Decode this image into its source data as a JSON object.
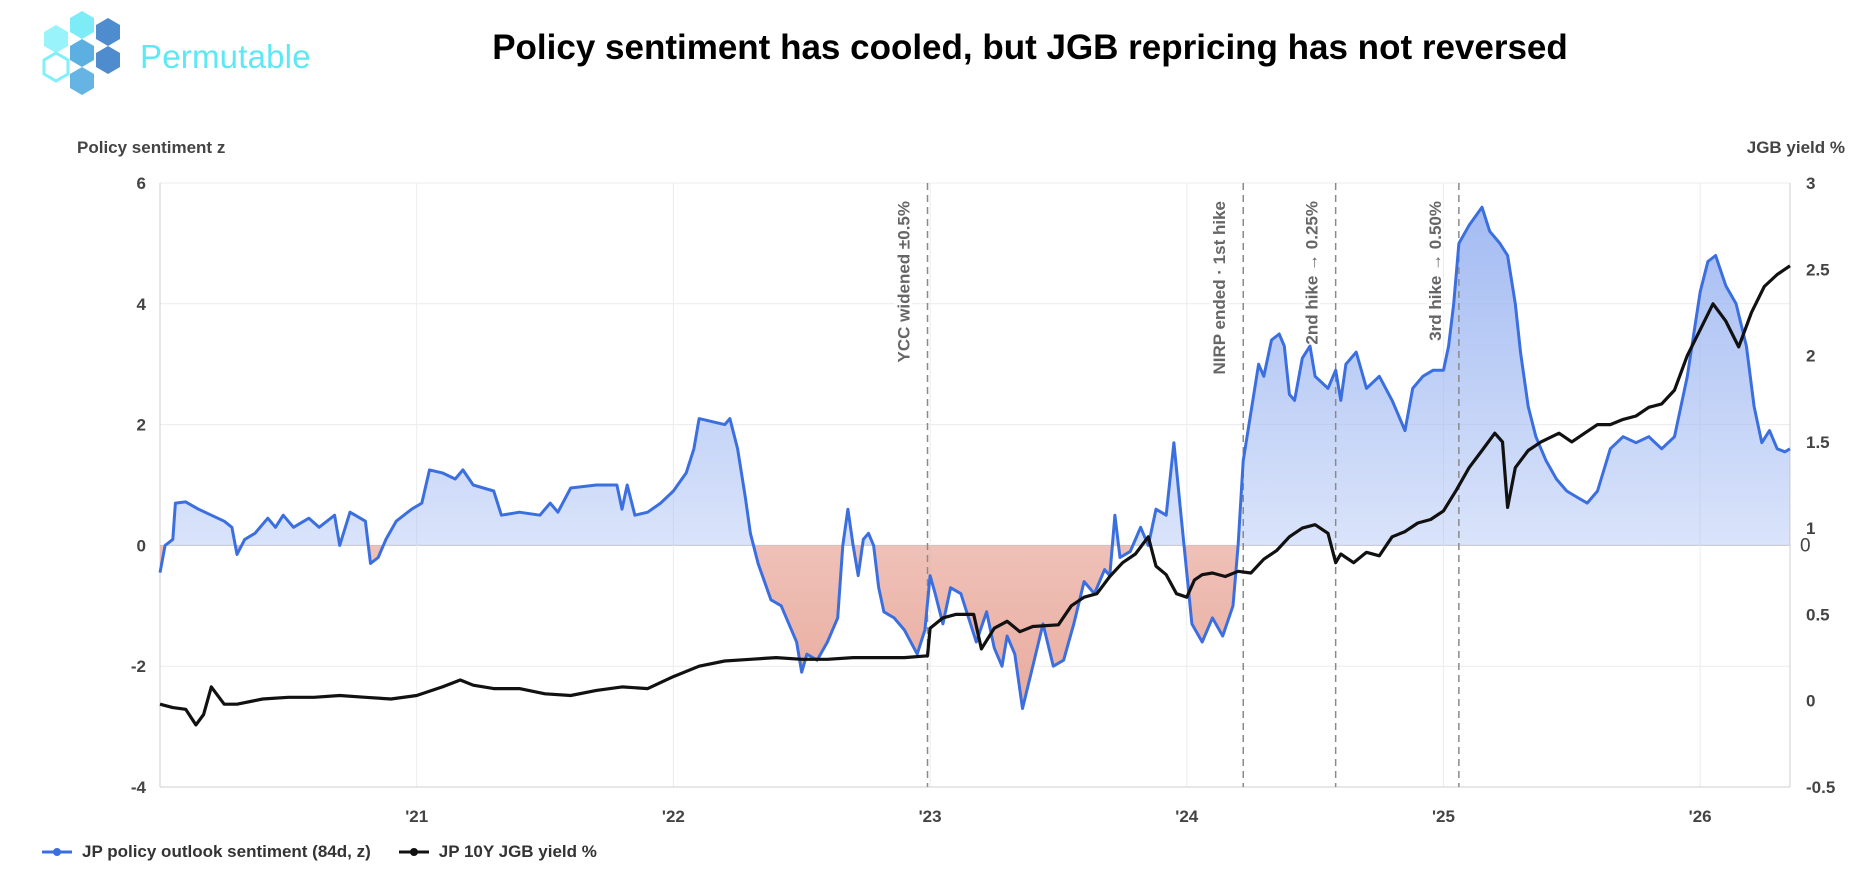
{
  "header": {
    "brand": "Permutable",
    "title": "Policy sentiment has cooled, but JGB repricing has not reversed"
  },
  "colors": {
    "sentiment": "#3b6fe0",
    "yield": "#111111",
    "positive_fill": "#9fb8f2",
    "negative_fill": "#e8a79a",
    "logo_hex": "#5ee7f5",
    "logo_hex_dark": "#3b7fc8"
  },
  "chart_data": {
    "type": "line",
    "title": "Policy sentiment has cooled, but JGB repricing has not reversed",
    "y_left_label": "Policy sentiment z",
    "y_right_label": "JGB yield %",
    "x_range": [
      2020.0,
      2026.35
    ],
    "ylim_left": [
      -4,
      6
    ],
    "ylim_right": [
      -0.5,
      3
    ],
    "x_ticks": [
      {
        "x": 2021,
        "label": "'21"
      },
      {
        "x": 2022,
        "label": "'22"
      },
      {
        "x": 2023,
        "label": "'23"
      },
      {
        "x": 2024,
        "label": "'24"
      },
      {
        "x": 2025,
        "label": "'25"
      },
      {
        "x": 2026,
        "label": "'26"
      }
    ],
    "y_left_ticks": [
      -4,
      -2,
      0,
      2,
      4,
      6
    ],
    "y_right_ticks": [
      -0.5,
      0,
      0.5,
      1,
      1.5,
      2,
      2.5,
      3
    ],
    "zero_label": "0",
    "grid": true,
    "legend_position": "bottom-left",
    "events": [
      {
        "x": 2022.99,
        "label": "YCC widened ±0.5%"
      },
      {
        "x": 2024.22,
        "label": "NIRP ended · 1st hike"
      },
      {
        "x": 2024.58,
        "label": "2nd hike → 0.25%"
      },
      {
        "x": 2025.06,
        "label": "3rd hike → 0.50%"
      }
    ],
    "series": [
      {
        "name": "JP policy outlook sentiment (84d, z)",
        "axis": "left",
        "points": [
          [
            2020.0,
            -0.45
          ],
          [
            2020.02,
            0.0
          ],
          [
            2020.05,
            0.1
          ],
          [
            2020.06,
            0.7
          ],
          [
            2020.1,
            0.72
          ],
          [
            2020.15,
            0.6
          ],
          [
            2020.2,
            0.5
          ],
          [
            2020.25,
            0.4
          ],
          [
            2020.28,
            0.3
          ],
          [
            2020.3,
            -0.15
          ],
          [
            2020.33,
            0.1
          ],
          [
            2020.37,
            0.2
          ],
          [
            2020.42,
            0.45
          ],
          [
            2020.45,
            0.3
          ],
          [
            2020.48,
            0.5
          ],
          [
            2020.52,
            0.3
          ],
          [
            2020.58,
            0.45
          ],
          [
            2020.62,
            0.3
          ],
          [
            2020.68,
            0.5
          ],
          [
            2020.7,
            0.0
          ],
          [
            2020.74,
            0.55
          ],
          [
            2020.8,
            0.4
          ],
          [
            2020.82,
            -0.3
          ],
          [
            2020.85,
            -0.2
          ],
          [
            2020.88,
            0.1
          ],
          [
            2020.92,
            0.4
          ],
          [
            2020.98,
            0.6
          ],
          [
            2021.02,
            0.7
          ],
          [
            2021.05,
            1.25
          ],
          [
            2021.1,
            1.2
          ],
          [
            2021.15,
            1.1
          ],
          [
            2021.18,
            1.25
          ],
          [
            2021.22,
            1.0
          ],
          [
            2021.3,
            0.9
          ],
          [
            2021.33,
            0.5
          ],
          [
            2021.4,
            0.55
          ],
          [
            2021.48,
            0.5
          ],
          [
            2021.52,
            0.7
          ],
          [
            2021.55,
            0.55
          ],
          [
            2021.6,
            0.95
          ],
          [
            2021.7,
            1.0
          ],
          [
            2021.78,
            1.0
          ],
          [
            2021.8,
            0.6
          ],
          [
            2021.82,
            1.0
          ],
          [
            2021.85,
            0.5
          ],
          [
            2021.9,
            0.55
          ],
          [
            2021.95,
            0.7
          ],
          [
            2022.0,
            0.9
          ],
          [
            2022.05,
            1.2
          ],
          [
            2022.08,
            1.6
          ],
          [
            2022.1,
            2.1
          ],
          [
            2022.15,
            2.05
          ],
          [
            2022.2,
            2.0
          ],
          [
            2022.22,
            2.1
          ],
          [
            2022.25,
            1.6
          ],
          [
            2022.28,
            0.8
          ],
          [
            2022.3,
            0.2
          ],
          [
            2022.33,
            -0.3
          ],
          [
            2022.38,
            -0.9
          ],
          [
            2022.42,
            -1.0
          ],
          [
            2022.45,
            -1.3
          ],
          [
            2022.48,
            -1.6
          ],
          [
            2022.5,
            -2.1
          ],
          [
            2022.52,
            -1.8
          ],
          [
            2022.56,
            -1.9
          ],
          [
            2022.6,
            -1.6
          ],
          [
            2022.64,
            -1.2
          ],
          [
            2022.66,
            0.0
          ],
          [
            2022.68,
            0.6
          ],
          [
            2022.7,
            0.0
          ],
          [
            2022.72,
            -0.5
          ],
          [
            2022.74,
            0.1
          ],
          [
            2022.76,
            0.2
          ],
          [
            2022.78,
            0.0
          ],
          [
            2022.8,
            -0.7
          ],
          [
            2022.82,
            -1.1
          ],
          [
            2022.86,
            -1.2
          ],
          [
            2022.9,
            -1.4
          ],
          [
            2022.95,
            -1.8
          ],
          [
            2022.98,
            -1.4
          ],
          [
            2023.0,
            -0.5
          ],
          [
            2023.02,
            -0.8
          ],
          [
            2023.05,
            -1.3
          ],
          [
            2023.08,
            -0.7
          ],
          [
            2023.12,
            -0.8
          ],
          [
            2023.15,
            -1.2
          ],
          [
            2023.18,
            -1.6
          ],
          [
            2023.22,
            -1.1
          ],
          [
            2023.25,
            -1.7
          ],
          [
            2023.28,
            -2.0
          ],
          [
            2023.3,
            -1.5
          ],
          [
            2023.33,
            -1.8
          ],
          [
            2023.36,
            -2.7
          ],
          [
            2023.4,
            -2.0
          ],
          [
            2023.44,
            -1.3
          ],
          [
            2023.48,
            -2.0
          ],
          [
            2023.52,
            -1.9
          ],
          [
            2023.56,
            -1.3
          ],
          [
            2023.6,
            -0.6
          ],
          [
            2023.64,
            -0.8
          ],
          [
            2023.68,
            -0.4
          ],
          [
            2023.7,
            -0.5
          ],
          [
            2023.72,
            0.5
          ],
          [
            2023.74,
            -0.2
          ],
          [
            2023.78,
            -0.1
          ],
          [
            2023.82,
            0.3
          ],
          [
            2023.85,
            0.0
          ],
          [
            2023.88,
            0.6
          ],
          [
            2023.92,
            0.5
          ],
          [
            2023.95,
            1.7
          ],
          [
            2023.98,
            0.4
          ],
          [
            2024.02,
            -1.3
          ],
          [
            2024.06,
            -1.6
          ],
          [
            2024.1,
            -1.2
          ],
          [
            2024.14,
            -1.5
          ],
          [
            2024.18,
            -1.0
          ],
          [
            2024.2,
            0.0
          ],
          [
            2024.22,
            1.4
          ],
          [
            2024.25,
            2.2
          ],
          [
            2024.28,
            3.0
          ],
          [
            2024.3,
            2.8
          ],
          [
            2024.33,
            3.4
          ],
          [
            2024.36,
            3.5
          ],
          [
            2024.38,
            3.3
          ],
          [
            2024.4,
            2.5
          ],
          [
            2024.42,
            2.4
          ],
          [
            2024.45,
            3.1
          ],
          [
            2024.48,
            3.3
          ],
          [
            2024.5,
            2.8
          ],
          [
            2024.55,
            2.6
          ],
          [
            2024.58,
            2.9
          ],
          [
            2024.6,
            2.4
          ],
          [
            2024.62,
            3.0
          ],
          [
            2024.66,
            3.2
          ],
          [
            2024.7,
            2.6
          ],
          [
            2024.75,
            2.8
          ],
          [
            2024.8,
            2.4
          ],
          [
            2024.85,
            1.9
          ],
          [
            2024.88,
            2.6
          ],
          [
            2024.92,
            2.8
          ],
          [
            2024.96,
            2.9
          ],
          [
            2025.0,
            2.9
          ],
          [
            2025.02,
            3.3
          ],
          [
            2025.04,
            4.0
          ],
          [
            2025.06,
            5.0
          ],
          [
            2025.1,
            5.3
          ],
          [
            2025.15,
            5.6
          ],
          [
            2025.18,
            5.2
          ],
          [
            2025.22,
            5.0
          ],
          [
            2025.25,
            4.8
          ],
          [
            2025.28,
            4.0
          ],
          [
            2025.3,
            3.2
          ],
          [
            2025.33,
            2.3
          ],
          [
            2025.36,
            1.8
          ],
          [
            2025.4,
            1.4
          ],
          [
            2025.44,
            1.1
          ],
          [
            2025.48,
            0.9
          ],
          [
            2025.52,
            0.8
          ],
          [
            2025.56,
            0.7
          ],
          [
            2025.6,
            0.9
          ],
          [
            2025.65,
            1.6
          ],
          [
            2025.7,
            1.8
          ],
          [
            2025.75,
            1.7
          ],
          [
            2025.8,
            1.8
          ],
          [
            2025.85,
            1.6
          ],
          [
            2025.9,
            1.8
          ],
          [
            2025.95,
            2.8
          ],
          [
            2026.0,
            4.2
          ],
          [
            2026.03,
            4.7
          ],
          [
            2026.06,
            4.8
          ],
          [
            2026.1,
            4.3
          ],
          [
            2026.14,
            4.0
          ],
          [
            2026.18,
            3.3
          ],
          [
            2026.21,
            2.3
          ],
          [
            2026.24,
            1.7
          ],
          [
            2026.27,
            1.9
          ],
          [
            2026.3,
            1.6
          ],
          [
            2026.33,
            1.55
          ],
          [
            2026.35,
            1.6
          ]
        ]
      },
      {
        "name": "JP 10Y JGB yield %",
        "axis": "right",
        "points": [
          [
            2020.0,
            -0.02
          ],
          [
            2020.05,
            -0.04
          ],
          [
            2020.1,
            -0.05
          ],
          [
            2020.14,
            -0.14
          ],
          [
            2020.17,
            -0.08
          ],
          [
            2020.2,
            0.08
          ],
          [
            2020.25,
            -0.02
          ],
          [
            2020.3,
            -0.02
          ],
          [
            2020.4,
            0.01
          ],
          [
            2020.5,
            0.02
          ],
          [
            2020.6,
            0.02
          ],
          [
            2020.7,
            0.03
          ],
          [
            2020.8,
            0.02
          ],
          [
            2020.9,
            0.01
          ],
          [
            2021.0,
            0.03
          ],
          [
            2021.1,
            0.08
          ],
          [
            2021.17,
            0.12
          ],
          [
            2021.22,
            0.09
          ],
          [
            2021.3,
            0.07
          ],
          [
            2021.4,
            0.07
          ],
          [
            2021.5,
            0.04
          ],
          [
            2021.6,
            0.03
          ],
          [
            2021.7,
            0.06
          ],
          [
            2021.8,
            0.08
          ],
          [
            2021.9,
            0.07
          ],
          [
            2022.0,
            0.14
          ],
          [
            2022.1,
            0.2
          ],
          [
            2022.2,
            0.23
          ],
          [
            2022.3,
            0.24
          ],
          [
            2022.4,
            0.25
          ],
          [
            2022.5,
            0.24
          ],
          [
            2022.6,
            0.24
          ],
          [
            2022.7,
            0.25
          ],
          [
            2022.8,
            0.25
          ],
          [
            2022.9,
            0.25
          ],
          [
            2022.99,
            0.26
          ],
          [
            2023.0,
            0.42
          ],
          [
            2023.05,
            0.48
          ],
          [
            2023.1,
            0.5
          ],
          [
            2023.17,
            0.5
          ],
          [
            2023.2,
            0.3
          ],
          [
            2023.25,
            0.42
          ],
          [
            2023.3,
            0.46
          ],
          [
            2023.35,
            0.4
          ],
          [
            2023.4,
            0.43
          ],
          [
            2023.5,
            0.44
          ],
          [
            2023.55,
            0.55
          ],
          [
            2023.6,
            0.6
          ],
          [
            2023.65,
            0.62
          ],
          [
            2023.7,
            0.72
          ],
          [
            2023.75,
            0.8
          ],
          [
            2023.8,
            0.85
          ],
          [
            2023.85,
            0.95
          ],
          [
            2023.88,
            0.78
          ],
          [
            2023.92,
            0.73
          ],
          [
            2023.96,
            0.62
          ],
          [
            2024.0,
            0.6
          ],
          [
            2024.03,
            0.7
          ],
          [
            2024.06,
            0.73
          ],
          [
            2024.1,
            0.74
          ],
          [
            2024.15,
            0.72
          ],
          [
            2024.2,
            0.75
          ],
          [
            2024.25,
            0.74
          ],
          [
            2024.3,
            0.82
          ],
          [
            2024.35,
            0.87
          ],
          [
            2024.4,
            0.95
          ],
          [
            2024.45,
            1.0
          ],
          [
            2024.5,
            1.02
          ],
          [
            2024.55,
            0.97
          ],
          [
            2024.58,
            0.8
          ],
          [
            2024.6,
            0.85
          ],
          [
            2024.65,
            0.8
          ],
          [
            2024.7,
            0.86
          ],
          [
            2024.75,
            0.84
          ],
          [
            2024.8,
            0.95
          ],
          [
            2024.85,
            0.98
          ],
          [
            2024.9,
            1.03
          ],
          [
            2024.95,
            1.05
          ],
          [
            2025.0,
            1.1
          ],
          [
            2025.05,
            1.22
          ],
          [
            2025.1,
            1.35
          ],
          [
            2025.15,
            1.45
          ],
          [
            2025.2,
            1.55
          ],
          [
            2025.23,
            1.5
          ],
          [
            2025.25,
            1.12
          ],
          [
            2025.28,
            1.35
          ],
          [
            2025.33,
            1.45
          ],
          [
            2025.38,
            1.5
          ],
          [
            2025.45,
            1.55
          ],
          [
            2025.5,
            1.5
          ],
          [
            2025.55,
            1.55
          ],
          [
            2025.6,
            1.6
          ],
          [
            2025.65,
            1.6
          ],
          [
            2025.7,
            1.63
          ],
          [
            2025.75,
            1.65
          ],
          [
            2025.8,
            1.7
          ],
          [
            2025.85,
            1.72
          ],
          [
            2025.9,
            1.8
          ],
          [
            2025.95,
            2.0
          ],
          [
            2026.0,
            2.15
          ],
          [
            2026.05,
            2.3
          ],
          [
            2026.1,
            2.2
          ],
          [
            2026.15,
            2.05
          ],
          [
            2026.2,
            2.25
          ],
          [
            2026.25,
            2.4
          ],
          [
            2026.3,
            2.47
          ],
          [
            2026.35,
            2.52
          ]
        ]
      }
    ]
  }
}
